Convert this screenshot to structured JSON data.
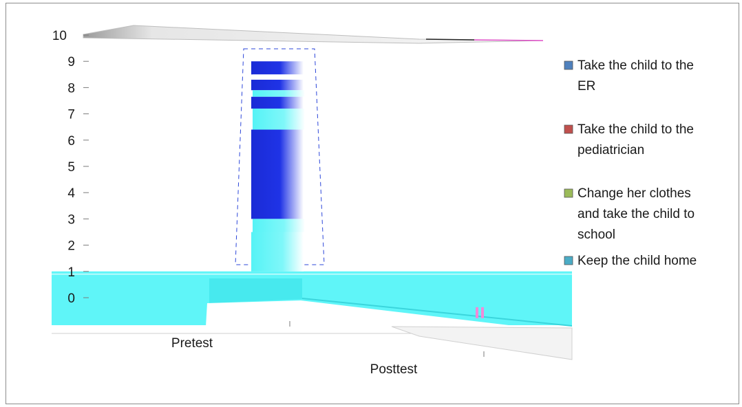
{
  "chart_data": {
    "type": "bar",
    "title": "",
    "xlabel": "",
    "ylabel": "",
    "categories": [
      "Pretest",
      "Posttest"
    ],
    "ylim": [
      0,
      10
    ],
    "yticks": [
      "0",
      "1",
      "2",
      "3",
      "4",
      "5",
      "6",
      "7",
      "8",
      "9",
      "10"
    ],
    "series": [
      {
        "name": "Take the child to the ER",
        "values": [
          9.0,
          0
        ],
        "color": "#4f81bd"
      },
      {
        "name": "Take the child to the pediatrician",
        "values": [
          0,
          0.1
        ],
        "color": "#c0504d"
      },
      {
        "name": "Change her clothes and take the child to school",
        "values": [
          0,
          0
        ],
        "color": "#9bbb59"
      },
      {
        "name": "Keep the child home",
        "values": [
          1.0,
          1.0
        ],
        "color": "#4bacc6"
      }
    ],
    "legend": [
      {
        "lines": [
          "Take the child to the",
          "ER"
        ],
        "color": "#4f81bd"
      },
      {
        "lines": [
          "Take the child to the",
          "pediatrician"
        ],
        "color": "#c0504d"
      },
      {
        "lines": [
          "Change her clothes",
          "and take the child to",
          "school"
        ],
        "color": "#9bbb59"
      },
      {
        "lines": [
          "Keep the child home"
        ],
        "color": "#4bacc6"
      }
    ],
    "legend_position": "right",
    "grid": false
  }
}
